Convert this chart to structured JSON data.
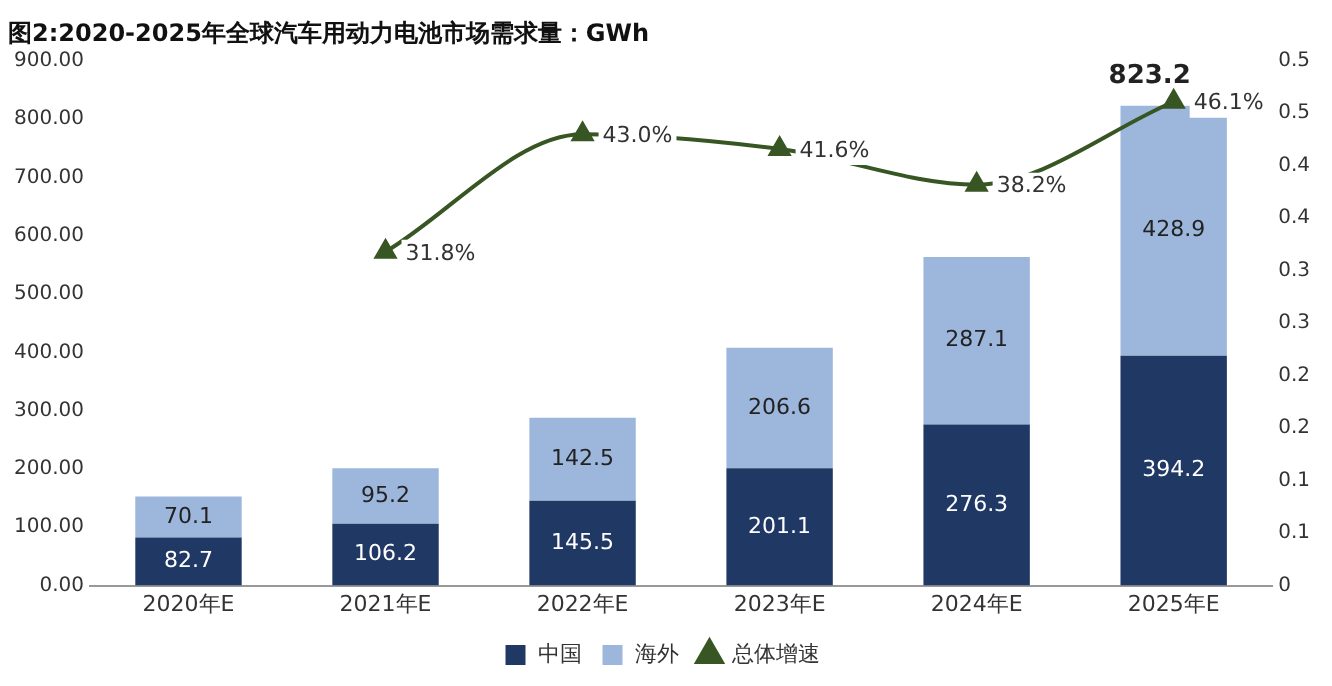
{
  "chart_data": {
    "type": "bar",
    "title": "图2:2020-2025年全球汽车用动力电池市场需求量：GWh",
    "categories": [
      "2020年E",
      "2021年E",
      "2022年E",
      "2023年E",
      "2024年E",
      "2025年E"
    ],
    "series": [
      {
        "name": "中国",
        "color": "#203864",
        "values": [
          82.7,
          106.2,
          145.5,
          201.1,
          276.3,
          394.2
        ]
      },
      {
        "name": "海外",
        "color": "#9db6dc",
        "values": [
          70.1,
          95.2,
          142.5,
          206.6,
          287.1,
          428.9
        ]
      },
      {
        "name": "总体增速",
        "type": "line",
        "axis": "y2",
        "color": "#375623",
        "marker": "triangle",
        "values": [
          null,
          0.318,
          0.43,
          0.416,
          0.382,
          0.461
        ],
        "value_labels": [
          null,
          "31.8%",
          "43.0%",
          "41.6%",
          "38.2%",
          "46.1%"
        ]
      }
    ],
    "stacked": true,
    "data_labels": true,
    "totals": [
      null,
      null,
      null,
      null,
      null,
      "823.2"
    ],
    "ylim": [
      0,
      900
    ],
    "yticks": [
      {
        "value": 0,
        "label": "0.00"
      },
      {
        "value": 100,
        "label": "100.00"
      },
      {
        "value": 200,
        "label": "200.00"
      },
      {
        "value": 300,
        "label": "300.00"
      },
      {
        "value": 400,
        "label": "400.00"
      },
      {
        "value": 500,
        "label": "500.00"
      },
      {
        "value": 600,
        "label": "600.00"
      },
      {
        "value": 700,
        "label": "700.00"
      },
      {
        "value": 800,
        "label": "800.00"
      },
      {
        "value": 900,
        "label": "900.00"
      }
    ],
    "y2lim": [
      0,
      0.5
    ],
    "y2ticks": [
      0,
      {
        "value": 0.05,
        "label": "0.1"
      },
      0.1,
      {
        "value": 0.15,
        "label": "0.2"
      },
      0.2,
      {
        "value": 0.25,
        "label": "0.3"
      },
      0.3,
      {
        "value": 0.35,
        "label": "0.4"
      },
      0.4,
      {
        "value": 0.45,
        "label": "0.5"
      },
      0.5
    ],
    "legend": "bottom",
    "grid": false
  }
}
